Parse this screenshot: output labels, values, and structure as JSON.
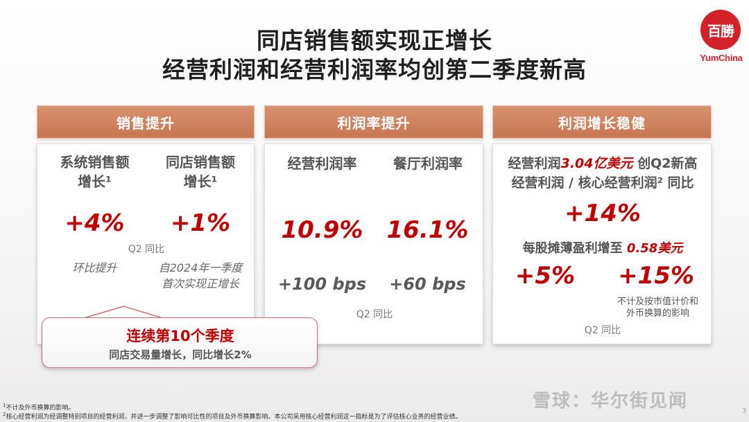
{
  "title": {
    "line1": "同店销售额实现正增长",
    "line2": "经营利润和经营利润率均创第二季度新高"
  },
  "logo": {
    "mark": "百勝",
    "text": "YumChina",
    "color": "#d42029"
  },
  "panel1": {
    "header": "销售提升",
    "col1_head_a": "系统销售额",
    "col1_head_b": "增长¹",
    "col2_head_a": "同店销售额",
    "col2_head_b": "增长¹",
    "col1_value": "+4%",
    "col2_value": "+1%",
    "period": "Q2 同比",
    "col1_note": "环比提升",
    "col2_note_a": "自2024年一季度",
    "col2_note_b": "首次实现正增长"
  },
  "panel2": {
    "header": "利润率提升",
    "col1_head": "经营利润率",
    "col2_head": "餐厅利润率",
    "col1_value": "10.9%",
    "col2_value": "16.1%",
    "col1_bps": "+100 bps",
    "col2_bps": "+60 bps",
    "period": "Q2 同比"
  },
  "panel3": {
    "header": "利润增长稳健",
    "line1_a": "经营利润",
    "line1_b": "3.04亿美元",
    "line1_c": " 创Q2新高",
    "line2": "经营利润 / 核心经营利润² 同比",
    "value_main": "+14%",
    "eps_a": "每股摊薄盈利增至 ",
    "eps_b": "0.58美元",
    "value_left": "+5%",
    "value_right": "+15%",
    "right_note_a": "不计及按市值计价和",
    "right_note_b": "外币换算的影响",
    "period": "Q2 同比"
  },
  "callout": {
    "line1": "连续第10个季度",
    "line2": "同店交易量增长，同比增长2%"
  },
  "footnotes": {
    "note1_mark": "1",
    "note1": "不计及外币换算的影响。",
    "note2_mark": "2",
    "note2": "核心经营利润为经调整特别项目的经营利润，并进一步调整了影响可比性的项目及外币换算影响。本公司采用核心经营利润这一指标是为了评估核心业务的经营业绩。"
  },
  "watermark": "雪球：华尔街见闻",
  "page_number": "3",
  "colors": {
    "accent_red": "#c00000",
    "header_orange": "#cd7d59"
  }
}
